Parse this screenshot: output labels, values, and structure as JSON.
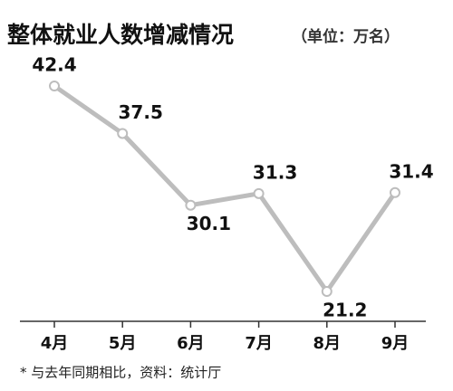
{
  "chart_data": {
    "type": "line",
    "title": "整体就业人数增减情况",
    "subtitle": "（单位：万名）",
    "categories": [
      "4月",
      "5月",
      "6月",
      "7月",
      "8月",
      "9月"
    ],
    "values": [
      42.4,
      37.5,
      30.1,
      31.3,
      21.2,
      31.4
    ],
    "color": "#bdbdbd",
    "note": "* 与去年同期相比，资料：统计厅"
  }
}
